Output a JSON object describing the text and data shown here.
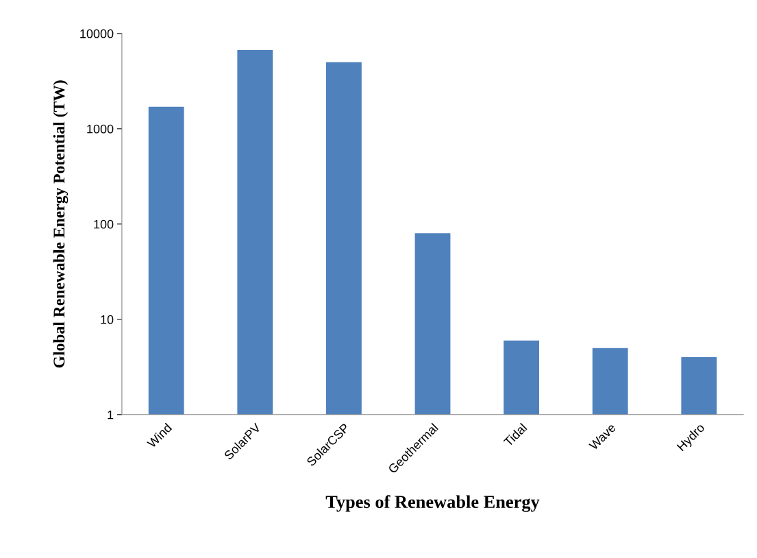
{
  "chart_data": {
    "type": "bar",
    "xlabel": "Types of Renewable Energy",
    "ylabel": "Global Renewable Energy Potential (TW)",
    "categories": [
      "Wind",
      "SolarPV",
      "SolarCSP",
      "Geothermal",
      "Tidal",
      "Wave",
      "Hydro"
    ],
    "values": [
      1700,
      6700,
      5000,
      80,
      6,
      5,
      4
    ],
    "color": "#4f81bd",
    "log": "y",
    "ylim": [
      1,
      10000
    ],
    "yticks": [
      1,
      10,
      100,
      1000,
      10000
    ],
    "grid": false,
    "legend": false
  }
}
